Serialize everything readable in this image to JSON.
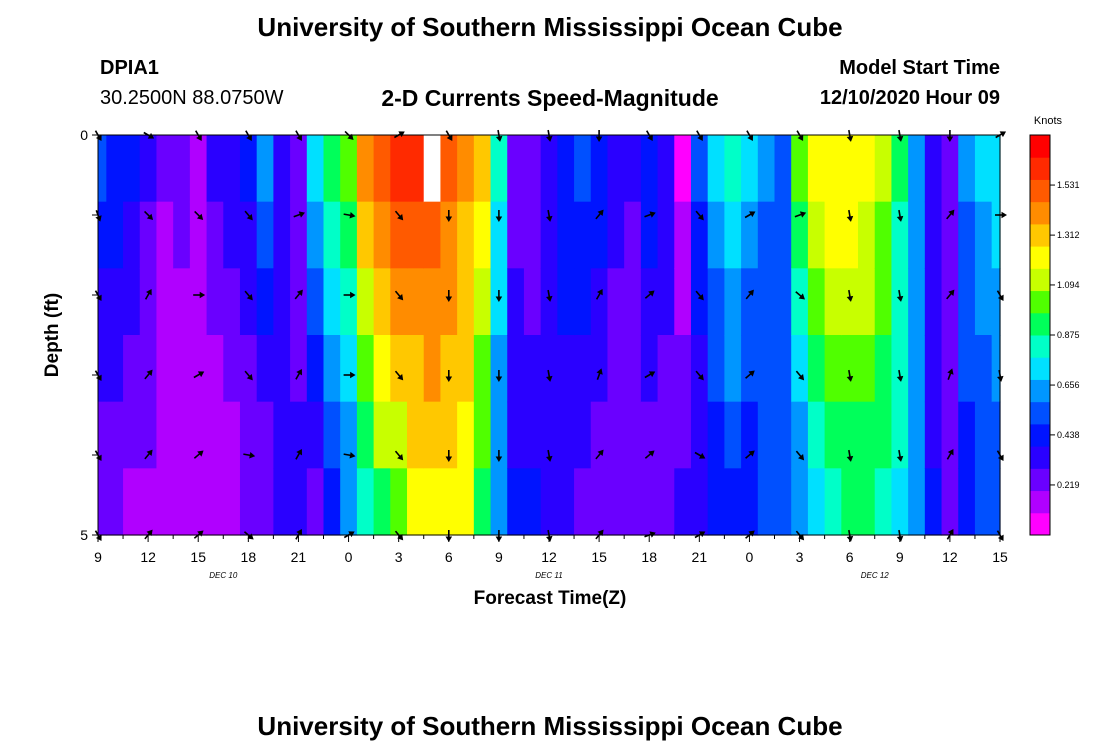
{
  "page": {
    "title_top": "University of Southern Mississippi Ocean Cube",
    "title_bottom": "University of Southern Mississippi Ocean Cube",
    "station_id": "DPIA1",
    "station_coords": "30.2500N 88.0750W",
    "model_start_label": "Model Start Time",
    "model_start_value": "12/10/2020 Hour 09"
  },
  "colors": {
    "palette": [
      "#ff00ff",
      "#b000ff",
      "#6a00ff",
      "#2a00ff",
      "#0014ff",
      "#0050ff",
      "#0096ff",
      "#00e0ff",
      "#00ffc8",
      "#00ff5a",
      "#50ff00",
      "#c8ff00",
      "#ffff00",
      "#ffc800",
      "#ff8c00",
      "#ff5a00",
      "#ff2a00",
      "#ff0000"
    ]
  },
  "chart_data": {
    "type": "heatmap",
    "title": "2-D Currents Speed-Magnitude",
    "xlabel": "Forecast Time(Z)",
    "ylabel": "Depth (ft)",
    "colorbar_label": "Knots",
    "colorbar_ticks": [
      "1.531",
      "1.312",
      "1.094",
      "0.875",
      "0.656",
      "0.438",
      "0.219"
    ],
    "colorbar_range": [
      0.0,
      1.75
    ],
    "y_tick_labels": [
      "0",
      "5"
    ],
    "y_range": [
      0,
      5
    ],
    "x_range_hours": [
      0,
      54
    ],
    "x_tick_labels": [
      "9",
      "12",
      "15",
      "18",
      "21",
      "0",
      "3",
      "6",
      "9",
      "12",
      "15",
      "18",
      "21",
      "0",
      "3",
      "6",
      "9",
      "12",
      "15"
    ],
    "date_labels": [
      {
        "label": "DEC 10",
        "hour": 7.5
      },
      {
        "label": "DEC 11",
        "hour": 27
      },
      {
        "label": "DEC 12",
        "hour": 46.5
      }
    ],
    "depth_layers": [
      0,
      1,
      2,
      3,
      4,
      5
    ],
    "missing_cells": [
      {
        "hour": 20,
        "layer": 0
      }
    ],
    "speed_profile": {
      "hours": [
        0,
        1,
        2,
        3,
        4,
        5,
        6,
        7,
        8,
        9,
        10,
        11,
        12,
        13,
        14,
        15,
        16,
        17,
        18,
        19,
        20,
        21,
        22,
        23,
        24,
        25,
        26,
        27,
        28,
        29,
        30,
        31,
        32,
        33,
        34,
        35,
        36,
        37,
        38,
        39,
        40,
        41,
        42,
        43,
        44,
        45,
        46,
        47,
        48,
        49,
        50,
        51,
        52,
        53,
        54
      ],
      "surface": [
        0.5,
        0.45,
        0.4,
        0.3,
        0.2,
        0.25,
        0.1,
        0.3,
        0.35,
        0.4,
        0.6,
        0.3,
        0.2,
        0.75,
        0.9,
        1.0,
        1.4,
        1.55,
        1.6,
        1.6,
        1.58,
        1.5,
        1.4,
        1.3,
        0.8,
        0.25,
        0.2,
        0.35,
        0.45,
        0.5,
        0.45,
        0.35,
        0.3,
        0.45,
        0.35,
        0.05,
        0.5,
        0.7,
        0.8,
        0.7,
        0.6,
        0.55,
        1.0,
        1.2,
        1.25,
        1.25,
        1.2,
        1.1,
        0.9,
        0.6,
        0.3,
        0.2,
        0.6,
        0.7,
        0.75
      ],
      "bottom": [
        0.2,
        0.2,
        0.15,
        0.18,
        0.15,
        0.1,
        0.1,
        0.12,
        0.15,
        0.2,
        0.2,
        0.3,
        0.35,
        0.25,
        0.4,
        0.6,
        0.8,
        0.95,
        1.05,
        1.2,
        1.25,
        1.25,
        1.2,
        0.9,
        0.6,
        0.4,
        0.4,
        0.35,
        0.3,
        0.25,
        0.2,
        0.2,
        0.2,
        0.2,
        0.25,
        0.3,
        0.3,
        0.4,
        0.45,
        0.4,
        0.5,
        0.5,
        0.6,
        0.75,
        0.85,
        0.9,
        0.9,
        0.85,
        0.75,
        0.6,
        0.4,
        0.2,
        0.45,
        0.5,
        0.5
      ]
    },
    "vectors": {
      "hours": [
        0,
        3,
        6,
        9,
        12,
        15,
        18,
        21,
        24,
        27,
        30,
        33,
        36,
        39,
        42,
        45,
        48,
        51,
        54
      ],
      "directions_deg": [
        [
          150,
          120,
          150,
          150,
          150,
          135,
          60,
          150,
          170,
          170,
          180,
          150,
          150,
          150,
          150,
          170,
          170,
          180,
          60
        ],
        [
          160,
          135,
          135,
          140,
          70,
          100,
          140,
          180,
          180,
          170,
          40,
          70,
          140,
          60,
          70,
          170,
          170,
          40,
          90
        ],
        [
          150,
          30,
          90,
          140,
          40,
          90,
          140,
          180,
          180,
          170,
          30,
          50,
          140,
          40,
          130,
          170,
          170,
          40,
          150
        ],
        [
          150,
          40,
          60,
          140,
          30,
          90,
          140,
          180,
          180,
          170,
          20,
          60,
          140,
          50,
          140,
          170,
          170,
          20,
          170
        ],
        [
          150,
          40,
          50,
          100,
          30,
          100,
          140,
          180,
          180,
          170,
          40,
          50,
          120,
          50,
          140,
          170,
          170,
          30,
          150
        ],
        [
          150,
          40,
          50,
          130,
          30,
          60,
          140,
          180,
          180,
          170,
          40,
          70,
          60,
          50,
          140,
          170,
          170,
          30,
          150
        ]
      ]
    }
  }
}
